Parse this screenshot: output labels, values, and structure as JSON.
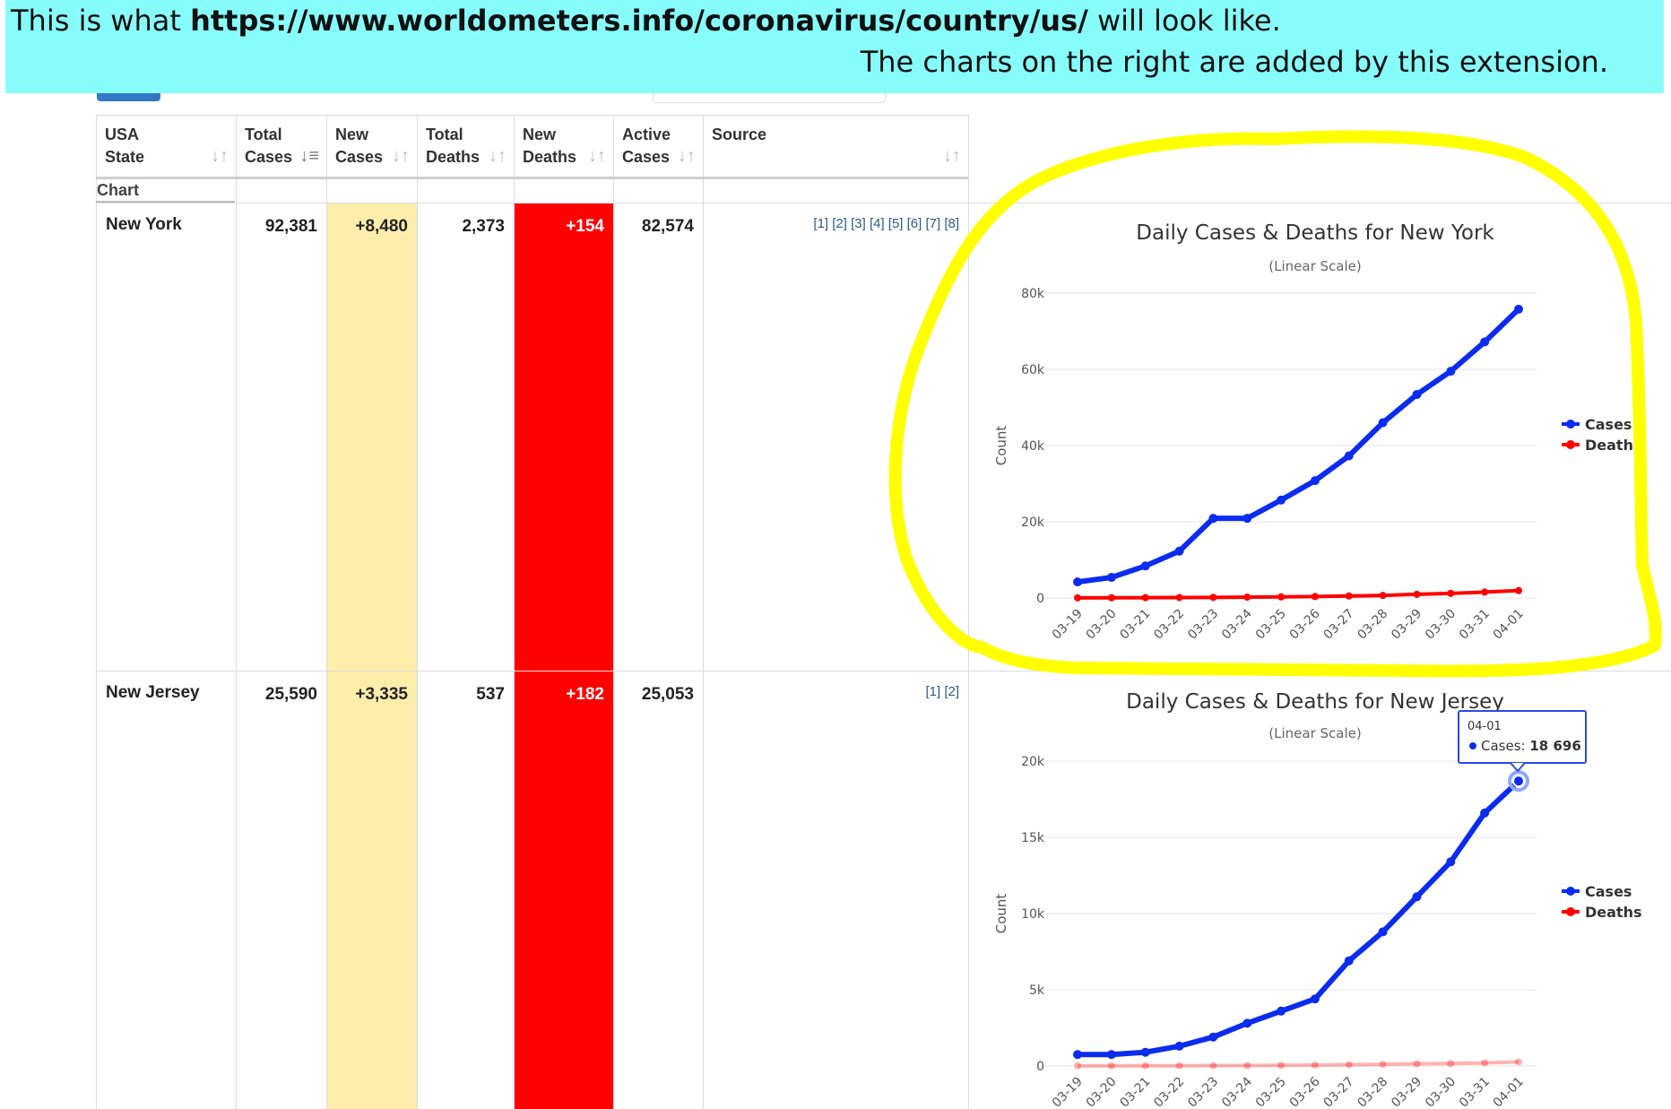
{
  "banner": {
    "prefix": "This is what ",
    "url": "https://www.worldometers.info/coronavirus/country/us/",
    "suffix": " will look like.",
    "line2": "The charts on the right are added by this extension."
  },
  "table": {
    "headers": [
      {
        "line1": "USA",
        "line2": "State"
      },
      {
        "line1": "Total",
        "line2": "Cases"
      },
      {
        "line1": "New",
        "line2": "Cases"
      },
      {
        "line1": "Total",
        "line2": "Deaths"
      },
      {
        "line1": "New",
        "line2": "Deaths"
      },
      {
        "line1": "Active",
        "line2": "Cases"
      },
      {
        "line1": "",
        "line2": "Source"
      }
    ],
    "chart_label": "Chart",
    "rows": [
      {
        "state": "New York",
        "total_cases": "92,381",
        "new_cases": "+8,480",
        "total_deaths": "2,373",
        "new_deaths": "+154",
        "active_cases": "82,574",
        "sources": "[1] [2] [3] [4] [5] [6] [7] [8]"
      },
      {
        "state": "New Jersey",
        "total_cases": "25,590",
        "new_cases": "+3,335",
        "total_deaths": "537",
        "new_deaths": "+182",
        "active_cases": "25,053",
        "sources": "[1] [2]"
      }
    ]
  },
  "colors": {
    "cases": "#0b2cf0",
    "deaths": "#ff0000",
    "highlight": "#ffff00",
    "banner": "#87fdfb"
  },
  "chart_data": [
    {
      "type": "line",
      "title": "Daily Cases & Deaths for New York",
      "subtitle": "(Linear Scale)",
      "ylabel": "Count",
      "ylim": [
        0,
        80000
      ],
      "yticks": [
        "0",
        "20k",
        "40k",
        "60k",
        "80k"
      ],
      "x": [
        "03-19",
        "03-20",
        "03-21",
        "03-22",
        "03-23",
        "03-24",
        "03-25",
        "03-26",
        "03-27",
        "03-28",
        "03-29",
        "03-30",
        "03-31",
        "04-01"
      ],
      "series": [
        {
          "name": "Cases",
          "values": [
            4200,
            5400,
            8400,
            12300,
            20900,
            20900,
            25700,
            30800,
            37300,
            46000,
            53400,
            59500,
            67200,
            75800
          ]
        },
        {
          "name": "Deaths",
          "values": [
            35,
            60,
            75,
            110,
            160,
            210,
            285,
            385,
            520,
            670,
            965,
            1220,
            1550,
            1940
          ]
        }
      ],
      "legend_position": "right",
      "highlighted": true
    },
    {
      "type": "line",
      "title": "Daily Cases & Deaths for New Jersey",
      "subtitle": "(Linear Scale)",
      "ylabel": "Count",
      "ylim": [
        0,
        20000
      ],
      "yticks": [
        "0",
        "5k",
        "10k",
        "15k",
        "20k"
      ],
      "x": [
        "03-19",
        "03-20",
        "03-21",
        "03-22",
        "03-23",
        "03-24",
        "03-25",
        "03-26",
        "03-27",
        "03-28",
        "03-29",
        "03-30",
        "03-31",
        "04-01"
      ],
      "series": [
        {
          "name": "Cases",
          "values": [
            750,
            750,
            900,
            1300,
            1900,
            2800,
            3600,
            4400,
            6900,
            8800,
            11100,
            13400,
            16600,
            18696
          ]
        },
        {
          "name": "Deaths",
          "values": [
            9,
            11,
            16,
            16,
            20,
            27,
            44,
            62,
            81,
            108,
            140,
            161,
            198,
            267
          ]
        }
      ],
      "legend_position": "right",
      "tooltip": {
        "title": "04-01",
        "series": "Cases",
        "label": "Cases: ",
        "value": "18 696"
      }
    }
  ]
}
